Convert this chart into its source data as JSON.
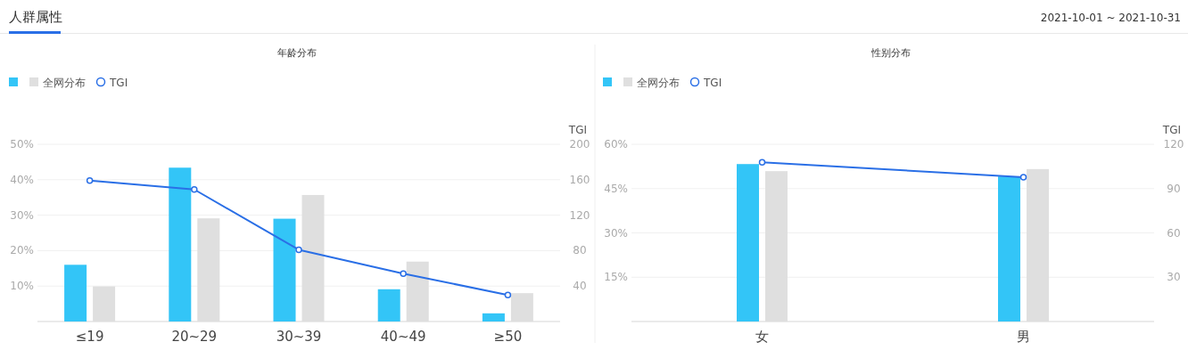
{
  "chart_data": [
    {
      "type": "bar",
      "title": "年龄分布",
      "annotations": [
        "人群属性",
        "2021-10-01 ~ 2021-10-31"
      ],
      "y2label": "TGI",
      "categories": [
        "≤19",
        "20~29",
        "30~39",
        "40~49",
        "≥50"
      ],
      "series": [
        {
          "color": "#33c5f7",
          "values": [
            16.0,
            43.4,
            29.0,
            9.1,
            2.3
          ]
        },
        {
          "name": "全网分布",
          "color": "#dfdfdf",
          "values": [
            9.9,
            29.1,
            35.7,
            16.9,
            8.0
          ]
        },
        {
          "name": "TGI",
          "type": "line",
          "axis": "y2",
          "color": "#2a6fe6",
          "marker": "circle",
          "values": [
            159,
            149,
            81,
            54,
            30
          ]
        }
      ],
      "ylim": [
        0,
        50
      ],
      "yticks": [
        {
          "value": 0,
          "label": null
        },
        {
          "value": 10,
          "label": "10%"
        },
        {
          "value": 20,
          "label": "20%"
        },
        {
          "value": 30,
          "label": "30%"
        },
        {
          "value": 40,
          "label": "40%"
        },
        {
          "value": 50,
          "label": "50%"
        }
      ],
      "y2lim": [
        0,
        200
      ],
      "y2ticks": [
        40,
        80,
        120,
        160,
        200
      ],
      "grid": "y",
      "legend": "top left"
    },
    {
      "type": "bar",
      "title": "性别分布",
      "y2label": "TGI",
      "categories": [
        "女",
        "男"
      ],
      "series": [
        {
          "color": "#33c5f7",
          "values": [
            53.3,
            49.1
          ]
        },
        {
          "name": "全网分布",
          "color": "#dfdfdf",
          "values": [
            50.9,
            51.6
          ]
        },
        {
          "name": "TGI",
          "type": "line",
          "axis": "y2",
          "color": "#2a6fe6",
          "marker": "circle",
          "values": [
            107.8,
            97.7
          ]
        }
      ],
      "ylim": [
        0,
        60
      ],
      "yticks": [
        {
          "value": 0,
          "label": null
        },
        {
          "value": 15,
          "label": "15%"
        },
        {
          "value": 30,
          "label": "30%"
        },
        {
          "value": 45,
          "label": "45%"
        },
        {
          "value": 60,
          "label": "60%"
        }
      ],
      "y2lim": [
        0,
        120
      ],
      "y2ticks": [
        30,
        60,
        90,
        120
      ],
      "grid": "y",
      "legend": "top left"
    }
  ]
}
